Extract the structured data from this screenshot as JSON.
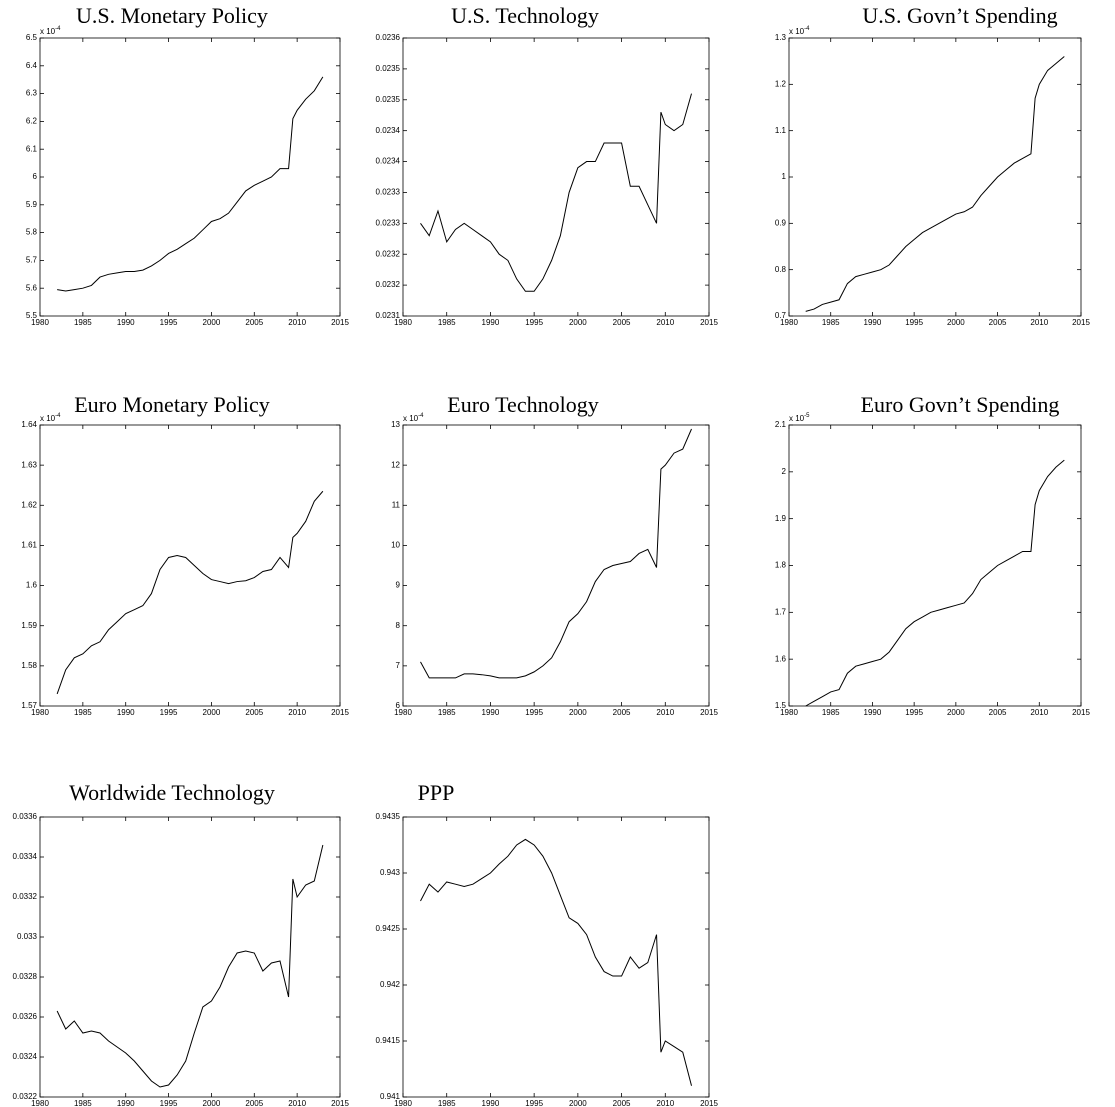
{
  "chart_data": [
    {
      "type": "line",
      "title": "U.S. Monetary Policy",
      "scale_base": "x 10",
      "scale_exponent": "-4",
      "x": [
        1982,
        1983,
        1984,
        1985,
        1986,
        1987,
        1988,
        1989,
        1990,
        1991,
        1992,
        1993,
        1994,
        1995,
        1996,
        1997,
        1998,
        1999,
        2000,
        2001,
        2002,
        2003,
        2004,
        2005,
        2006,
        2007,
        2008,
        2009,
        2009.5,
        2010,
        2011,
        2012,
        2013
      ],
      "values": [
        5.595,
        5.59,
        5.595,
        5.6,
        5.61,
        5.64,
        5.65,
        5.655,
        5.66,
        5.66,
        5.665,
        5.68,
        5.7,
        5.725,
        5.74,
        5.76,
        5.78,
        5.81,
        5.84,
        5.85,
        5.87,
        5.91,
        5.95,
        5.97,
        5.985,
        6.0,
        6.03,
        6.03,
        6.21,
        6.24,
        6.28,
        6.31,
        6.36
      ],
      "color": "#000000",
      "xlim": [
        1980,
        2015
      ],
      "xticks": [
        1980,
        1985,
        1990,
        1995,
        2000,
        2005,
        2010,
        2015
      ],
      "ylim": [
        5.5,
        6.5
      ],
      "yticks": [
        5.5,
        5.6,
        5.7,
        5.8,
        5.9,
        6,
        6.1,
        6.2,
        6.3,
        6.4,
        6.5
      ]
    },
    {
      "type": "line",
      "title": "U.S. Technology",
      "x": [
        1982,
        1983,
        1984,
        1985,
        1986,
        1987,
        1988,
        1989,
        1990,
        1991,
        1992,
        1993,
        1994,
        1995,
        1996,
        1997,
        1998,
        1999,
        2000,
        2001,
        2002,
        2003,
        2004,
        2005,
        2006,
        2007,
        2008,
        2009,
        2009.5,
        2010,
        2011,
        2012,
        2013
      ],
      "values": [
        0.02325,
        0.02323,
        0.02327,
        0.02322,
        0.02324,
        0.02325,
        0.02324,
        0.02323,
        0.02322,
        0.0232,
        0.02319,
        0.02316,
        0.02314,
        0.02314,
        0.02316,
        0.02319,
        0.02323,
        0.0233,
        0.02334,
        0.02335,
        0.02335,
        0.02338,
        0.02338,
        0.02338,
        0.02331,
        0.02331,
        0.02328,
        0.02325,
        0.02343,
        0.02341,
        0.0234,
        0.02341,
        0.02346
      ],
      "color": "#000000",
      "xlim": [
        1980,
        2015
      ],
      "xticks": [
        1980,
        1985,
        1990,
        1995,
        2000,
        2005,
        2010,
        2015
      ],
      "ylim": [
        0.0231,
        0.02355
      ],
      "yticks": [
        0.0231,
        {
          "value": 0.02315,
          "label": "0.0232"
        },
        0.0232,
        {
          "value": 0.02325,
          "label": "0.0233"
        },
        0.0233,
        {
          "value": 0.02335,
          "label": "0.0234"
        },
        0.0234,
        {
          "value": 0.02345,
          "label": "0.0235"
        },
        0.0235,
        {
          "value": 0.02355,
          "label": "0.0236"
        }
      ]
    },
    {
      "type": "line",
      "title": "U.S. Govn’t Spending",
      "scale_base": "x 10",
      "scale_exponent": "-4",
      "x": [
        1982,
        1983,
        1984,
        1985,
        1986,
        1987,
        1988,
        1989,
        1990,
        1991,
        1992,
        1993,
        1994,
        1995,
        1996,
        1997,
        1998,
        1999,
        2000,
        2001,
        2002,
        2003,
        2004,
        2005,
        2006,
        2007,
        2008,
        2009,
        2009.5,
        2010,
        2011,
        2012,
        2013
      ],
      "values": [
        0.71,
        0.715,
        0.725,
        0.73,
        0.735,
        0.77,
        0.785,
        0.79,
        0.795,
        0.8,
        0.81,
        0.83,
        0.85,
        0.865,
        0.88,
        0.89,
        0.9,
        0.91,
        0.92,
        0.925,
        0.935,
        0.96,
        0.98,
        1.0,
        1.015,
        1.03,
        1.04,
        1.05,
        1.17,
        1.2,
        1.23,
        1.245,
        1.26
      ],
      "color": "#000000",
      "xlim": [
        1980,
        2015
      ],
      "xticks": [
        1980,
        1985,
        1990,
        1995,
        2000,
        2005,
        2010,
        2015
      ],
      "ylim": [
        0.7,
        1.3
      ],
      "yticks": [
        0.7,
        0.8,
        0.9,
        1,
        1.1,
        1.2,
        1.3
      ]
    },
    {
      "type": "line",
      "title": "Euro Monetary Policy",
      "scale_base": "x 10",
      "scale_exponent": "-4",
      "x": [
        1982,
        1983,
        1984,
        1985,
        1986,
        1987,
        1988,
        1989,
        1990,
        1991,
        1992,
        1993,
        1994,
        1995,
        1996,
        1997,
        1998,
        1999,
        2000,
        2001,
        2002,
        2003,
        2004,
        2005,
        2006,
        2007,
        2008,
        2009,
        2009.5,
        2010,
        2011,
        2012,
        2013
      ],
      "values": [
        1.573,
        1.579,
        1.582,
        1.583,
        1.585,
        1.586,
        1.589,
        1.591,
        1.593,
        1.594,
        1.595,
        1.598,
        1.604,
        1.607,
        1.6075,
        1.607,
        1.605,
        1.603,
        1.6015,
        1.601,
        1.6005,
        1.601,
        1.6012,
        1.602,
        1.6035,
        1.604,
        1.607,
        1.6045,
        1.612,
        1.613,
        1.616,
        1.621,
        1.6235
      ],
      "color": "#000000",
      "xlim": [
        1980,
        2015
      ],
      "xticks": [
        1980,
        1985,
        1990,
        1995,
        2000,
        2005,
        2010,
        2015
      ],
      "ylim": [
        1.57,
        1.64
      ],
      "yticks": [
        1.57,
        1.58,
        1.59,
        1.6,
        1.61,
        1.62,
        1.63,
        1.64
      ]
    },
    {
      "type": "line",
      "title": "Euro Technology",
      "scale_base": "x 10",
      "scale_exponent": "-4",
      "x": [
        1982,
        1983,
        1984,
        1985,
        1986,
        1987,
        1988,
        1989,
        1990,
        1991,
        1992,
        1993,
        1994,
        1995,
        1996,
        1997,
        1998,
        1999,
        2000,
        2001,
        2002,
        2003,
        2004,
        2005,
        2006,
        2007,
        2008,
        2009,
        2009.5,
        2010,
        2011,
        2012,
        2013
      ],
      "values": [
        7.1,
        6.7,
        6.7,
        6.7,
        6.7,
        6.8,
        6.8,
        6.78,
        6.75,
        6.7,
        6.7,
        6.7,
        6.75,
        6.85,
        7.0,
        7.2,
        7.6,
        8.1,
        8.3,
        8.6,
        9.1,
        9.4,
        9.5,
        9.55,
        9.6,
        9.8,
        9.9,
        9.45,
        11.9,
        12.0,
        12.3,
        12.4,
        12.9
      ],
      "color": "#000000",
      "xlim": [
        1980,
        2015
      ],
      "xticks": [
        1980,
        1985,
        1990,
        1995,
        2000,
        2005,
        2010,
        2015
      ],
      "ylim": [
        6,
        13
      ],
      "yticks": [
        6,
        7,
        8,
        9,
        10,
        11,
        12,
        13
      ]
    },
    {
      "type": "line",
      "title": "Euro Govn’t Spending",
      "scale_base": "x 10",
      "scale_exponent": "-5",
      "x": [
        1982,
        1983,
        1984,
        1985,
        1986,
        1987,
        1988,
        1989,
        1990,
        1991,
        1992,
        1993,
        1994,
        1995,
        1996,
        1997,
        1998,
        1999,
        2000,
        2001,
        2002,
        2003,
        2004,
        2005,
        2006,
        2007,
        2008,
        2009,
        2009.5,
        2010,
        2011,
        2012,
        2013
      ],
      "values": [
        1.5,
        1.51,
        1.52,
        1.53,
        1.535,
        1.57,
        1.585,
        1.59,
        1.595,
        1.6,
        1.615,
        1.64,
        1.665,
        1.68,
        1.69,
        1.7,
        1.705,
        1.71,
        1.715,
        1.72,
        1.74,
        1.77,
        1.785,
        1.8,
        1.81,
        1.82,
        1.83,
        1.83,
        1.93,
        1.96,
        1.99,
        2.01,
        2.025
      ],
      "color": "#000000",
      "xlim": [
        1980,
        2015
      ],
      "xticks": [
        1980,
        1985,
        1990,
        1995,
        2000,
        2005,
        2010,
        2015
      ],
      "ylim": [
        1.5,
        2.1
      ],
      "yticks": [
        1.5,
        1.6,
        1.7,
        1.8,
        1.9,
        2,
        2.1
      ]
    },
    {
      "type": "line",
      "title": "Worldwide Technology",
      "x": [
        1982,
        1983,
        1984,
        1985,
        1986,
        1987,
        1988,
        1989,
        1990,
        1991,
        1992,
        1993,
        1994,
        1995,
        1996,
        1997,
        1998,
        1999,
        2000,
        2001,
        2002,
        2003,
        2004,
        2005,
        2006,
        2007,
        2008,
        2009,
        2009.5,
        2010,
        2011,
        2012,
        2013
      ],
      "values": [
        0.03263,
        0.03254,
        0.03258,
        0.03252,
        0.03253,
        0.03252,
        0.03248,
        0.03245,
        0.03242,
        0.03238,
        0.03233,
        0.03228,
        0.03225,
        0.03226,
        0.03231,
        0.03238,
        0.03252,
        0.03265,
        0.03268,
        0.03275,
        0.03285,
        0.03292,
        0.03293,
        0.03292,
        0.03283,
        0.03287,
        0.03288,
        0.0327,
        0.03329,
        0.0332,
        0.03326,
        0.03328,
        0.03346
      ],
      "color": "#000000",
      "xlim": [
        1980,
        2015
      ],
      "xticks": [
        1980,
        1985,
        1990,
        1995,
        2000,
        2005,
        2010,
        2015
      ],
      "ylim": [
        0.0322,
        0.0336
      ],
      "yticks": [
        0.0322,
        0.0324,
        0.0326,
        0.0328,
        0.033,
        0.0332,
        0.0334,
        0.0336
      ]
    },
    {
      "type": "line",
      "title": "PPP",
      "x": [
        1982,
        1983,
        1984,
        1985,
        1986,
        1987,
        1988,
        1989,
        1990,
        1991,
        1992,
        1993,
        1994,
        1995,
        1996,
        1997,
        1998,
        1999,
        2000,
        2001,
        2002,
        2003,
        2004,
        2005,
        2006,
        2007,
        2008,
        2009,
        2009.5,
        2010,
        2011,
        2012,
        2013
      ],
      "values": [
        0.94275,
        0.9429,
        0.94283,
        0.94292,
        0.9429,
        0.94288,
        0.9429,
        0.94295,
        0.943,
        0.94308,
        0.94315,
        0.94325,
        0.9433,
        0.94325,
        0.94315,
        0.943,
        0.9428,
        0.9426,
        0.94255,
        0.94245,
        0.94225,
        0.94212,
        0.94208,
        0.94208,
        0.94225,
        0.94215,
        0.9422,
        0.94245,
        0.9414,
        0.9415,
        0.94145,
        0.9414,
        0.9411
      ],
      "color": "#000000",
      "xlim": [
        1980,
        2015
      ],
      "xticks": [
        1980,
        1985,
        1990,
        1995,
        2000,
        2005,
        2010,
        2015
      ],
      "ylim": [
        0.941,
        0.9435
      ],
      "yticks": [
        0.941,
        0.9415,
        0.942,
        0.9425,
        0.943,
        0.9435
      ]
    }
  ]
}
